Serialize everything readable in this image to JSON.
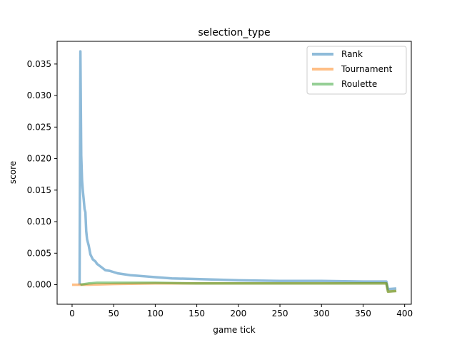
{
  "chart_data": {
    "type": "line",
    "title": "selection_type",
    "xlabel": "game tick",
    "ylabel": "score",
    "xlim": [
      -18,
      408
    ],
    "ylim": [
      -0.0031,
      0.0386
    ],
    "xticks": [
      0,
      50,
      100,
      150,
      200,
      250,
      300,
      350,
      400
    ],
    "xtick_labels": [
      "0",
      "50",
      "100",
      "150",
      "200",
      "250",
      "300",
      "350",
      "400"
    ],
    "yticks": [
      0.0,
      0.005,
      0.01,
      0.015,
      0.02,
      0.025,
      0.03,
      0.035
    ],
    "ytick_labels": [
      "0.000",
      "0.005",
      "0.010",
      "0.015",
      "0.020",
      "0.025",
      "0.030",
      "0.035"
    ],
    "grid": false,
    "legend_position": "top-right",
    "series": [
      {
        "name": "Rank",
        "color": "#1f77b4",
        "x": [
          0,
          9,
          10,
          11,
          12,
          13,
          14,
          15,
          16,
          17,
          18,
          20,
          22,
          25,
          28,
          30,
          35,
          40,
          45,
          50,
          55,
          60,
          70,
          80,
          90,
          100,
          120,
          150,
          200,
          250,
          300,
          350,
          378,
          380,
          390
        ],
        "y": [
          null,
          0.0,
          0.037,
          0.0205,
          0.0165,
          0.0148,
          0.0135,
          0.012,
          0.0115,
          0.0085,
          0.0072,
          0.0062,
          0.0048,
          0.004,
          0.0037,
          0.0033,
          0.0028,
          0.0023,
          0.0022,
          0.002,
          0.0018,
          0.0017,
          0.0015,
          0.0014,
          0.0013,
          0.0012,
          0.001,
          0.0009,
          0.0007,
          0.0006,
          0.0006,
          0.0005,
          0.0005,
          -0.0007,
          -0.0006
        ]
      },
      {
        "name": "Tournament",
        "color": "#ff7f0e",
        "x": [
          0,
          9,
          10,
          20,
          50,
          100,
          150,
          200,
          250,
          300,
          350,
          378,
          380,
          390
        ],
        "y": [
          0.0,
          0.0,
          0.0,
          0.0,
          0.0001,
          0.0002,
          0.0002,
          0.0002,
          0.0002,
          0.0002,
          0.0002,
          0.0002,
          -0.0011,
          -0.001
        ]
      },
      {
        "name": "Roulette",
        "color": "#2ca02c",
        "x": [
          10,
          15,
          20,
          30,
          50,
          80,
          100,
          150,
          200,
          250,
          300,
          350,
          378,
          380,
          390
        ],
        "y": [
          0.0,
          0.0001,
          0.0002,
          0.0003,
          0.0003,
          0.0003,
          0.0003,
          0.0002,
          0.0002,
          0.0002,
          0.0002,
          0.0002,
          0.0002,
          -0.0011,
          -0.001
        ]
      }
    ]
  }
}
